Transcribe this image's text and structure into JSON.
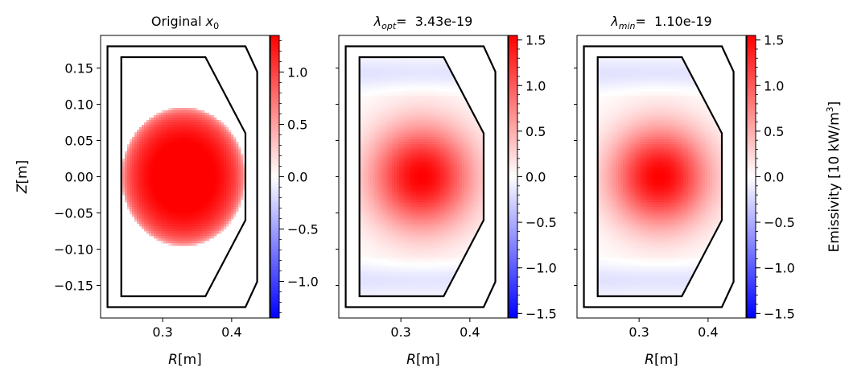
{
  "chart_data": [
    {
      "type": "heatmap",
      "title_parts": [
        [
          "Original ",
          "normal"
        ],
        [
          "x",
          "italic"
        ],
        [
          "0",
          "sub"
        ]
      ],
      "xlabel_parts": [
        [
          "R",
          "italic"
        ],
        [
          "[m]",
          "normal"
        ]
      ],
      "ylabel_parts": [
        [
          "Z",
          "italic"
        ],
        [
          "[m]",
          "normal"
        ]
      ],
      "xlim": [
        0.21,
        0.455
      ],
      "ylim": [
        -0.195,
        0.195
      ],
      "xticks": [
        0.3,
        0.4
      ],
      "xtick_labels": [
        "0.3",
        "0.4"
      ],
      "yticks": [
        0.15,
        0.1,
        0.05,
        0.0,
        -0.05,
        -0.1,
        -0.15
      ],
      "ytick_labels": [
        "0.15",
        "0.10",
        "0.05",
        "0.00",
        "−0.05",
        "−0.10",
        "−0.15"
      ],
      "outer_vessel": [
        [
          0.22,
          0.18
        ],
        [
          0.42,
          0.18
        ],
        [
          0.437,
          0.145
        ],
        [
          0.437,
          -0.145
        ],
        [
          0.42,
          -0.18
        ],
        [
          0.22,
          -0.18
        ]
      ],
      "inner_vessel": [
        [
          0.24,
          0.165
        ],
        [
          0.362,
          0.165
        ],
        [
          0.42,
          0.06
        ],
        [
          0.42,
          -0.06
        ],
        [
          0.362,
          -0.165
        ],
        [
          0.24,
          -0.165
        ]
      ],
      "emission_model": {
        "center": [
          0.33,
          0.0
        ],
        "radius_r": 0.09,
        "radius_z": 0.096,
        "peak": 1.5,
        "shape": "flat-disk"
      },
      "colorbar": {
        "clim": [
          -1.35,
          1.35
        ],
        "ticks": [
          1.0,
          0.5,
          0.0,
          -0.5,
          -1.0
        ],
        "tick_labels": [
          "1.0",
          "0.5",
          "0.0",
          "−0.5",
          "−1.0"
        ],
        "colormap": "bwr",
        "label_parts": []
      }
    },
    {
      "type": "heatmap",
      "title_parts": [
        [
          "λ",
          "italic"
        ],
        [
          "opt",
          "sub-italic"
        ],
        [
          "=  3.43e-19",
          "normal"
        ]
      ],
      "xlabel_parts": [
        [
          "R",
          "italic"
        ],
        [
          "[m]",
          "normal"
        ]
      ],
      "ylabel_parts": [],
      "xlim": [
        0.21,
        0.455
      ],
      "ylim": [
        -0.195,
        0.195
      ],
      "xticks": [
        0.3,
        0.4
      ],
      "xtick_labels": [
        "0.3",
        "0.4"
      ],
      "outer_vessel": [
        [
          0.22,
          0.18
        ],
        [
          0.42,
          0.18
        ],
        [
          0.437,
          0.145
        ],
        [
          0.437,
          -0.145
        ],
        [
          0.42,
          -0.18
        ],
        [
          0.22,
          -0.18
        ]
      ],
      "inner_vessel": [
        [
          0.24,
          0.165
        ],
        [
          0.362,
          0.165
        ],
        [
          0.42,
          0.06
        ],
        [
          0.42,
          -0.06
        ],
        [
          0.362,
          -0.165
        ],
        [
          0.24,
          -0.165
        ]
      ],
      "emission_model": {
        "center": [
          0.33,
          0.0
        ],
        "sigma_r": 0.052,
        "sigma_z": 0.05,
        "peak": 1.55,
        "shape": "gauss"
      },
      "colorbar": {
        "clim": [
          -1.55,
          1.55
        ],
        "ticks": [
          1.5,
          1.0,
          0.5,
          0.0,
          -0.5,
          -1.0,
          -1.5
        ],
        "tick_labels": [
          "1.5",
          "1.0",
          "0.5",
          "0.0",
          "−0.5",
          "−1.0",
          "−1.5"
        ],
        "colormap": "bwr",
        "label_parts": []
      }
    },
    {
      "type": "heatmap",
      "title_parts": [
        [
          "λ",
          "italic"
        ],
        [
          "min",
          "sub-italic"
        ],
        [
          "=  1.10e-19",
          "normal"
        ]
      ],
      "xlabel_parts": [
        [
          "R",
          "italic"
        ],
        [
          "[m]",
          "normal"
        ]
      ],
      "ylabel_parts": [],
      "xlim": [
        0.21,
        0.455
      ],
      "ylim": [
        -0.195,
        0.195
      ],
      "xticks": [
        0.3,
        0.4
      ],
      "xtick_labels": [
        "0.3",
        "0.4"
      ],
      "outer_vessel": [
        [
          0.22,
          0.18
        ],
        [
          0.42,
          0.18
        ],
        [
          0.437,
          0.145
        ],
        [
          0.437,
          -0.145
        ],
        [
          0.42,
          -0.18
        ],
        [
          0.22,
          -0.18
        ]
      ],
      "inner_vessel": [
        [
          0.24,
          0.165
        ],
        [
          0.362,
          0.165
        ],
        [
          0.42,
          0.06
        ],
        [
          0.42,
          -0.06
        ],
        [
          0.362,
          -0.165
        ],
        [
          0.24,
          -0.165
        ]
      ],
      "emission_model": {
        "center": [
          0.33,
          0.0
        ],
        "sigma_r": 0.05,
        "sigma_z": 0.048,
        "peak": 1.55,
        "shape": "gauss"
      },
      "colorbar": {
        "clim": [
          -1.55,
          1.55
        ],
        "ticks": [
          1.5,
          1.0,
          0.5,
          0.0,
          -0.5,
          -1.0,
          -1.5
        ],
        "tick_labels": [
          "1.5",
          "1.0",
          "0.5",
          "0.0",
          "−0.5",
          "−1.0",
          "−1.5"
        ],
        "colormap": "bwr",
        "label_parts": [
          [
            "Emissivity [10 kW/m",
            "normal"
          ],
          [
            "3",
            "sup"
          ],
          [
            "]",
            "normal"
          ]
        ]
      }
    }
  ]
}
